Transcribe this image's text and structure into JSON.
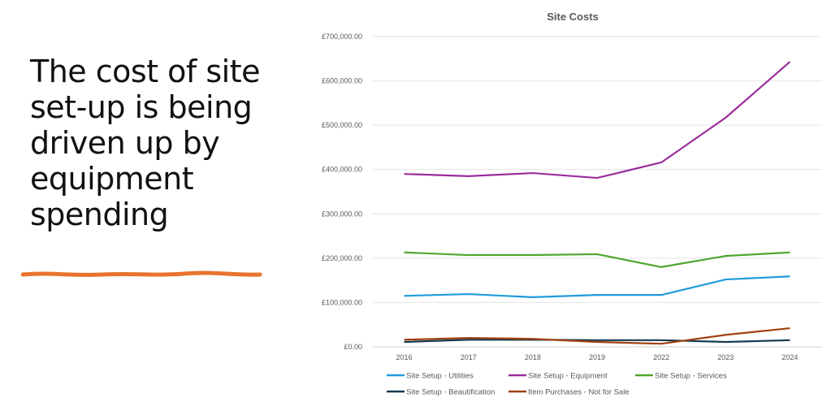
{
  "headline": "The cost of site set-up is being driven up by equipment spending",
  "underline_color": "#E8742E",
  "chart_data": {
    "type": "line",
    "title": "Site Costs",
    "xlabel": "",
    "ylabel": "",
    "categories": [
      "2016",
      "2017",
      "2018",
      "2019",
      "2022",
      "2023",
      "2024"
    ],
    "ylim": [
      0,
      700000
    ],
    "yticks": [
      0,
      100000,
      200000,
      300000,
      400000,
      500000,
      600000,
      700000
    ],
    "ytick_labels": [
      "£0.00",
      "£100,000.00",
      "£200,000.00",
      "£300,000.00",
      "£400,000.00",
      "£500,000.00",
      "£600,000.00",
      "£700,000.00"
    ],
    "grid": true,
    "legend": "bottom",
    "series": [
      {
        "name": "Site Setup - Utilities",
        "color": "#1F9BDB",
        "values": [
          115000,
          119000,
          112000,
          117000,
          117000,
          152000,
          159000
        ]
      },
      {
        "name": "Site Setup - Equipment",
        "color": "#9B2D9B",
        "values": [
          390000,
          385000,
          392000,
          381000,
          416000,
          517000,
          643000
        ]
      },
      {
        "name": "Site Setup - Services",
        "color": "#4EA72E",
        "values": [
          213000,
          207000,
          207000,
          209000,
          180000,
          205000,
          213000
        ]
      },
      {
        "name": "Site Setup - Beautification",
        "color": "#153A4F",
        "values": [
          11000,
          16000,
          16000,
          15000,
          15000,
          11000,
          15000
        ]
      },
      {
        "name": "Item Purchases - Not for Sale",
        "color": "#A0400F",
        "values": [
          16000,
          20000,
          18000,
          11000,
          7000,
          27000,
          42000
        ]
      }
    ]
  }
}
